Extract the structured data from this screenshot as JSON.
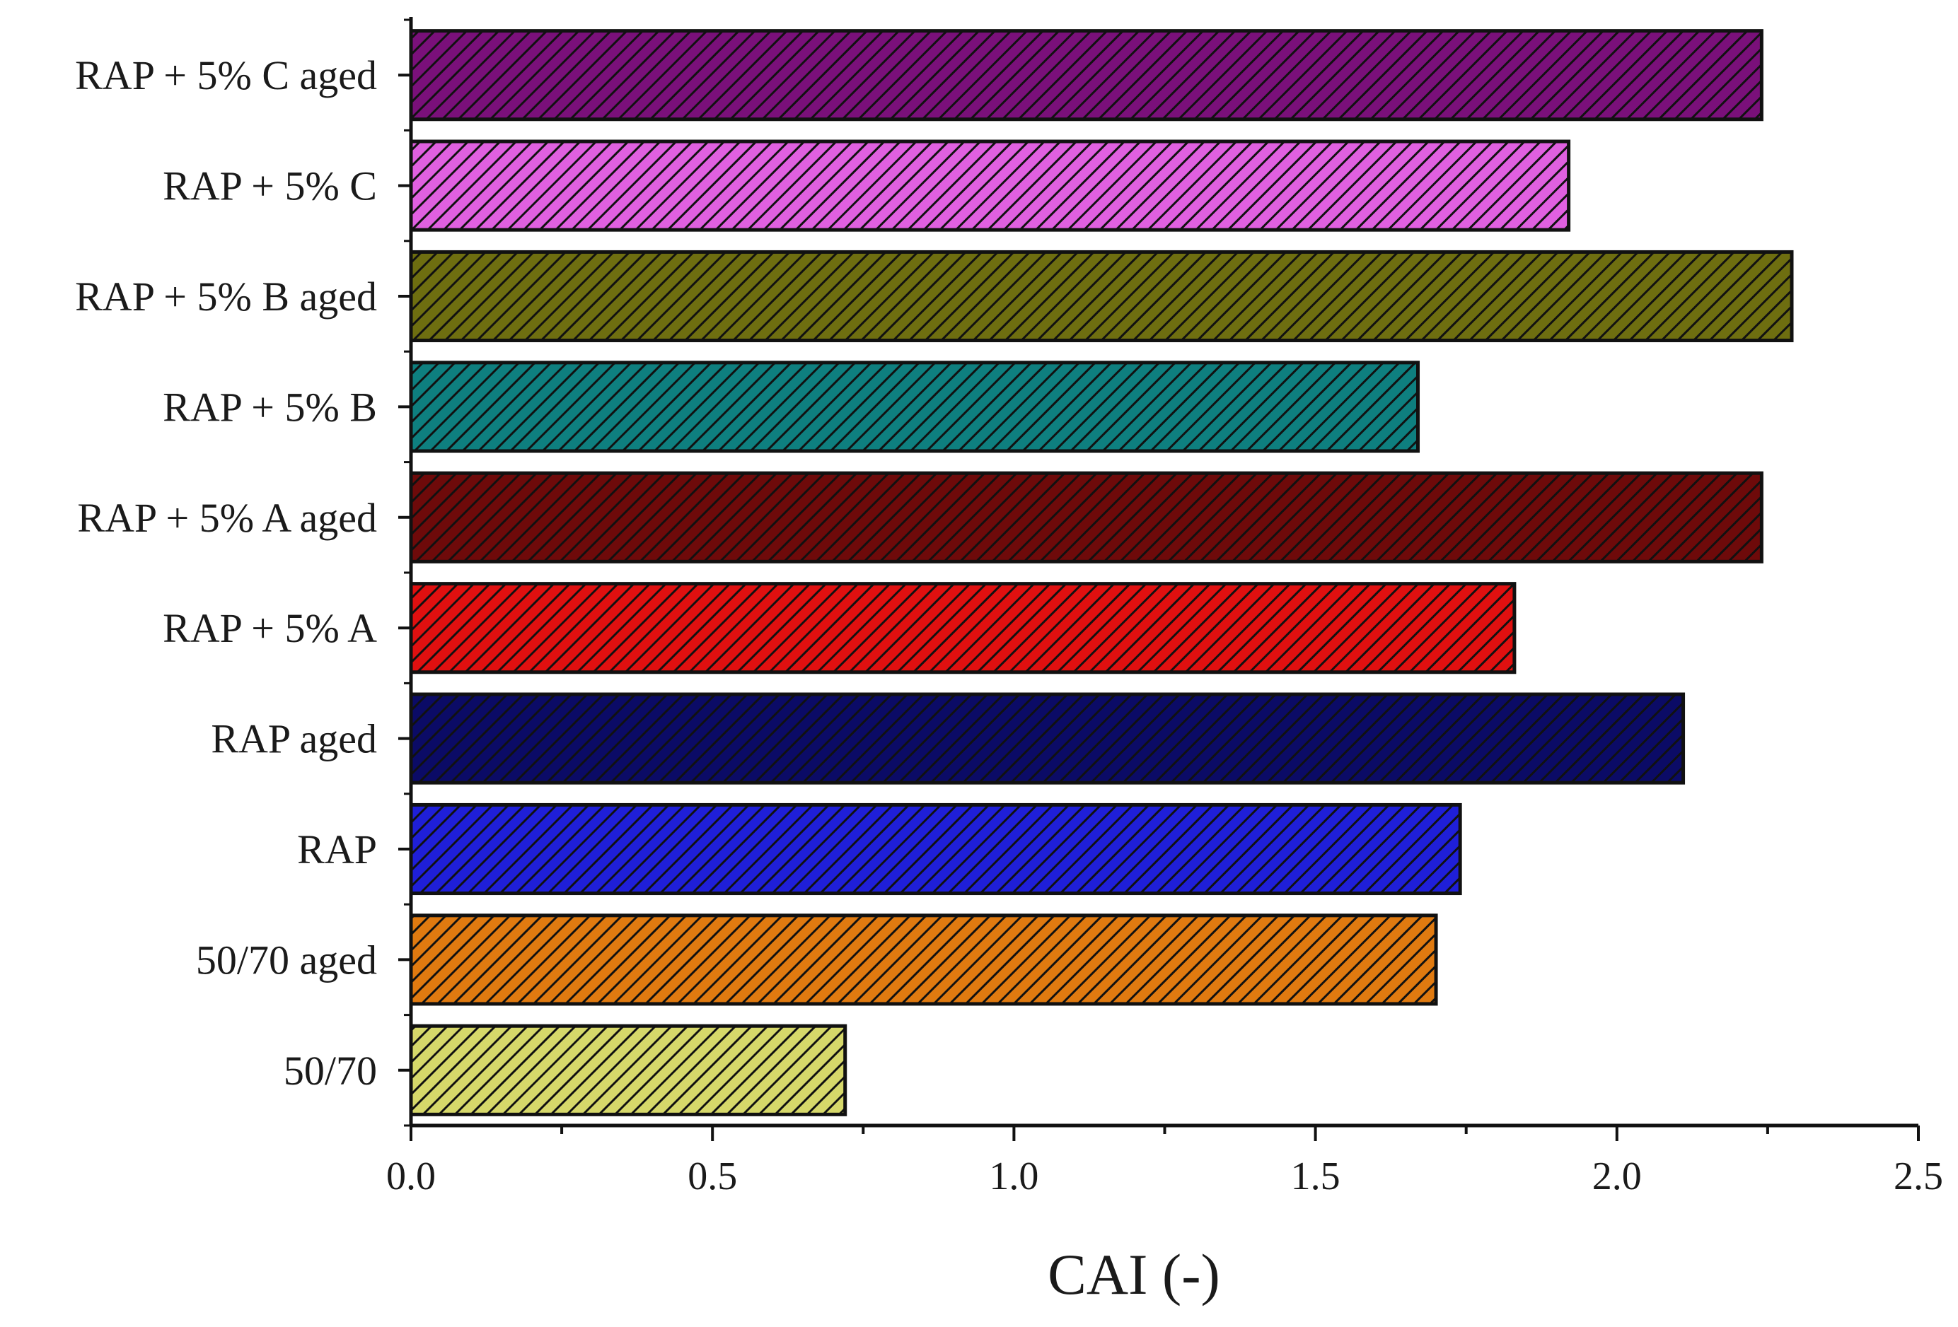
{
  "chart_data": {
    "type": "bar",
    "orientation": "horizontal",
    "categories": [
      "50/70",
      "50/70 aged",
      "RAP",
      "RAP aged",
      "RAP + 5% A",
      "RAP + 5% A aged",
      "RAP + 5% B",
      "RAP + 5% B aged",
      "RAP + 5% C",
      "RAP + 5% C aged"
    ],
    "values": [
      0.72,
      1.7,
      1.74,
      2.11,
      1.83,
      2.24,
      1.67,
      2.29,
      1.92,
      2.24
    ],
    "colors": [
      "#d6d86a",
      "#e07a10",
      "#1f1fd8",
      "#0b0b66",
      "#e01010",
      "#6e0a0a",
      "#0e7f7f",
      "#6e6e10",
      "#e060e0",
      "#7a107a"
    ],
    "pattern": "diagonal-hatch",
    "xlabel": "CAI (-)",
    "ylabel": "",
    "title": "",
    "xlim": [
      0,
      2.5
    ],
    "xticks": [
      "0.0",
      "0.5",
      "1.0",
      "1.5",
      "2.0",
      "2.5"
    ],
    "grid": false,
    "legend": "none"
  }
}
